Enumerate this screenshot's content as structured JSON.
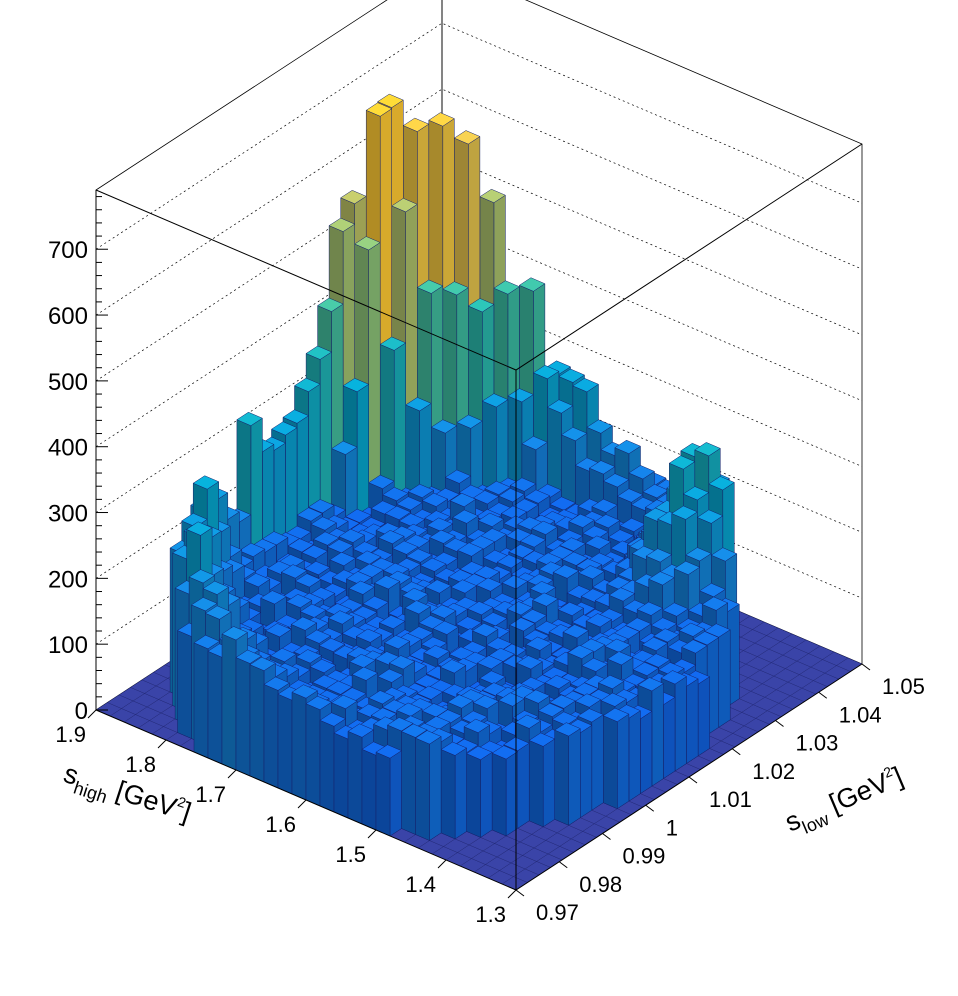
{
  "chart_data": {
    "type": "lego",
    "x_axis": {
      "label_main": "s",
      "label_sub": "low",
      "label_unit_open": " [GeV",
      "label_sup": "2",
      "label_unit_close": "]",
      "range": [
        0.97,
        1.05
      ],
      "ticks": [
        0.97,
        0.98,
        0.99,
        1,
        1.01,
        1.02,
        1.03,
        1.04,
        1.05
      ],
      "tick_labels": [
        "0.97",
        "0.98",
        "0.99",
        "1",
        "1.01",
        "1.02",
        "1.03",
        "1.04",
        "1.05"
      ]
    },
    "y_axis": {
      "label_main": "s",
      "label_sub": "high",
      "label_unit_open": " [GeV",
      "label_sup": "2",
      "label_unit_close": "]",
      "range": [
        1.3,
        1.9
      ],
      "ticks": [
        1.3,
        1.4,
        1.5,
        1.6,
        1.7,
        1.8,
        1.9
      ],
      "tick_labels": [
        "1.3",
        "1.4",
        "1.5",
        "1.6",
        "1.7",
        "1.8",
        "1.9"
      ]
    },
    "z_axis": {
      "range": [
        0,
        790
      ],
      "ticks": [
        0,
        100,
        200,
        300,
        400,
        500,
        600,
        700
      ],
      "tick_labels": [
        "0",
        "100",
        "200",
        "300",
        "400",
        "500",
        "600",
        "700"
      ]
    },
    "grid": true,
    "bins": {
      "x_count": 30,
      "y_count": 30
    },
    "ridge_profile": {
      "s_high": [
        1.3,
        1.34,
        1.38,
        1.42,
        1.46,
        1.5,
        1.54,
        1.58,
        1.62,
        1.66,
        1.7,
        1.74,
        1.78,
        1.82,
        1.86,
        1.9
      ],
      "edge_count": [
        0,
        20,
        40,
        95,
        160,
        180,
        150,
        175,
        210,
        260,
        330,
        430,
        560,
        740,
        790,
        0
      ]
    },
    "secondary_peak": {
      "s_high": 1.44,
      "count": 320
    },
    "colormap": [
      "#352a87",
      "#0f5cdd",
      "#1481d6",
      "#06a4ca",
      "#2eb7a4",
      "#87bf77",
      "#d1bb59",
      "#fec832",
      "#f9fb0e"
    ]
  }
}
